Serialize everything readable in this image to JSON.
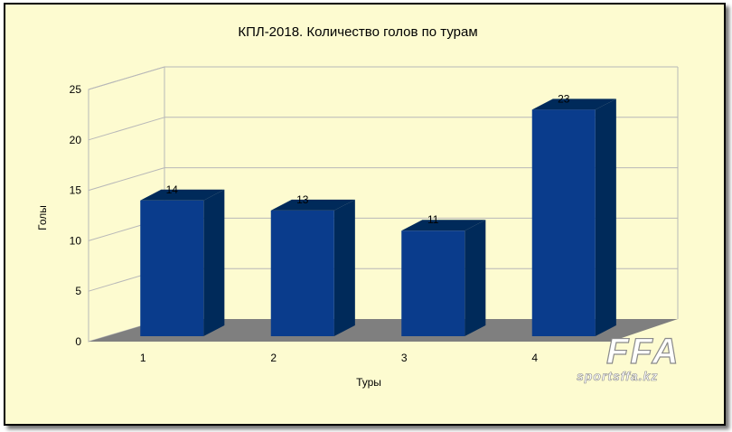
{
  "chart_data": {
    "type": "bar",
    "title": "КПЛ-2018. Количество голов по турам",
    "xlabel": "Туры",
    "ylabel": "Голы",
    "categories": [
      "1",
      "2",
      "3",
      "4"
    ],
    "values": [
      14,
      13,
      11,
      23
    ],
    "data_labels": [
      "14",
      "13",
      "11",
      "23"
    ],
    "ylim": [
      0,
      25
    ],
    "yticks": [
      "0",
      "5",
      "10",
      "15",
      "20",
      "25"
    ],
    "grid": true,
    "style": "3d",
    "bar_color": "#0a3c8c",
    "bar_side_color": "#002a5a",
    "floor_color": "#7f7f7f",
    "background_color": "#fdfbd0"
  },
  "watermark": {
    "logo_text": "FFA",
    "site_text": "sportsffa.kz"
  }
}
